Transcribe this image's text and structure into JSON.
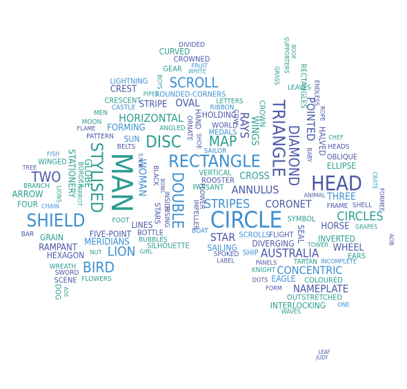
{
  "palette": {
    "navy": "#4a57a6",
    "blue": "#3d8fd0",
    "teal": "#2b9d8f",
    "green": "#2aa67e",
    "sky": "#3ba3c8"
  },
  "words": [
    {
      "text": "DIVIDED",
      "color": "navy"
    },
    {
      "text": "CURVED",
      "color": "teal"
    },
    {
      "text": "CROWNED",
      "color": "navy"
    },
    {
      "text": "GEAR",
      "color": "teal"
    },
    {
      "text": "FRUIT",
      "color": "blue"
    },
    {
      "text": "WHITE",
      "color": "sky"
    },
    {
      "text": "BOYS",
      "color": "teal"
    },
    {
      "text": "LIGHTNING",
      "color": "blue"
    },
    {
      "text": "SCROLL",
      "color": "blue"
    },
    {
      "text": "CREST",
      "color": "navy"
    },
    {
      "text": "PIPES",
      "color": "teal"
    },
    {
      "text": "ROUNDED-CORNERS",
      "color": "blue"
    },
    {
      "text": "CRESCENT",
      "color": "teal"
    },
    {
      "text": "OVAL",
      "color": "navy"
    },
    {
      "text": "LETTERS",
      "color": "teal"
    },
    {
      "text": "CASTLE",
      "color": "blue"
    },
    {
      "text": "STRIPE",
      "color": "navy"
    },
    {
      "text": "RIBBON",
      "color": "blue"
    },
    {
      "text": "MEN",
      "color": "teal"
    },
    {
      "text": "HORIZONTAL",
      "color": "teal"
    },
    {
      "text": "HOLDING",
      "color": "navy"
    },
    {
      "text": "MOON",
      "color": "teal"
    },
    {
      "text": "FLAME",
      "color": "navy"
    },
    {
      "text": "FORMING",
      "color": "blue"
    },
    {
      "text": "ANGLED",
      "color": "teal"
    },
    {
      "text": "PATTERN",
      "color": "navy"
    },
    {
      "text": "SUN",
      "color": "blue"
    },
    {
      "text": "MAP",
      "color": "teal"
    },
    {
      "text": "WORLD",
      "color": "navy"
    },
    {
      "text": "MEDALS",
      "color": "blue"
    },
    {
      "text": "DISC",
      "color": "teal"
    },
    {
      "text": "BELTS",
      "color": "navy"
    },
    {
      "text": "SAILOR",
      "color": "blue"
    },
    {
      "text": "WINGED",
      "color": "teal"
    },
    {
      "text": "FISH",
      "color": "blue"
    },
    {
      "text": "RECTANGLE",
      "color": "blue"
    },
    {
      "text": "TREE",
      "color": "navy"
    },
    {
      "text": "TWO",
      "color": "navy"
    },
    {
      "text": "VERTICAL",
      "color": "teal"
    },
    {
      "text": "CROSS",
      "color": "teal"
    },
    {
      "text": "BRANCH",
      "color": "teal"
    },
    {
      "text": "ROOSTER",
      "color": "navy"
    },
    {
      "text": "ARROW",
      "color": "teal"
    },
    {
      "text": "PASSANT",
      "color": "teal"
    },
    {
      "text": "ANNULUS",
      "color": "navy"
    },
    {
      "text": "FOUR",
      "color": "teal"
    },
    {
      "text": "CHAIN",
      "color": "blue"
    },
    {
      "text": "STRIPES",
      "color": "blue"
    },
    {
      "text": "CORONET",
      "color": "navy"
    },
    {
      "text": "HEAD",
      "color": "navy"
    },
    {
      "text": "SHIELD",
      "color": "blue"
    },
    {
      "text": "FOOT",
      "color": "teal"
    },
    {
      "text": "CIRCLE",
      "color": "blue"
    },
    {
      "text": "LINES",
      "color": "navy"
    },
    {
      "text": "BAR",
      "color": "navy"
    },
    {
      "text": "GRAIN",
      "color": "teal"
    },
    {
      "text": "FIVE-POINT",
      "color": "navy"
    },
    {
      "text": "BOTTLE",
      "color": "navy"
    },
    {
      "text": "BOAT",
      "color": "blue"
    },
    {
      "text": "STAR",
      "color": "navy"
    },
    {
      "text": "MERIDIANS",
      "color": "blue"
    },
    {
      "text": "BUBBLES",
      "color": "teal"
    },
    {
      "text": "SCROLLS",
      "color": "blue"
    },
    {
      "text": "FLIGHT",
      "color": "navy"
    },
    {
      "text": "SYMBOL",
      "color": "teal"
    },
    {
      "text": "HORSE",
      "color": "navy"
    },
    {
      "text": "RAMPANT",
      "color": "navy"
    },
    {
      "text": "SILHOUETTE",
      "color": "teal"
    },
    {
      "text": "SAILING",
      "color": "blue"
    },
    {
      "text": "DIVERGING",
      "color": "navy"
    },
    {
      "text": "HEXAGON",
      "color": "navy"
    },
    {
      "text": "LION",
      "color": "blue"
    },
    {
      "text": "NUT",
      "color": "teal"
    },
    {
      "text": "GIRL",
      "color": "teal"
    },
    {
      "text": "SPOKED",
      "color": "navy"
    },
    {
      "text": "SHIP",
      "color": "blue"
    },
    {
      "text": "AUSTRALIA",
      "color": "navy"
    },
    {
      "text": "LABEL",
      "color": "navy"
    },
    {
      "text": "TOWER",
      "color": "teal"
    },
    {
      "text": "WHEEL",
      "color": "navy"
    },
    {
      "text": "INVERTED",
      "color": "teal"
    },
    {
      "text": "EARS",
      "color": "teal"
    },
    {
      "text": "BIRD",
      "color": "blue"
    },
    {
      "text": "WREATH",
      "color": "teal"
    },
    {
      "text": "SWORD",
      "color": "navy"
    },
    {
      "text": "SCENE",
      "color": "navy"
    },
    {
      "text": "FLOWERS",
      "color": "teal"
    },
    {
      "text": "PANELS",
      "color": "navy"
    },
    {
      "text": "KNIGHT",
      "color": "teal"
    },
    {
      "text": "TARTAN",
      "color": "teal"
    },
    {
      "text": "INCOMPLETE",
      "color": "blue"
    },
    {
      "text": "CONCENTRIC",
      "color": "blue"
    },
    {
      "text": "DOTS",
      "color": "navy"
    },
    {
      "text": "EAGLE",
      "color": "blue"
    },
    {
      "text": "COLOURED",
      "color": "teal"
    },
    {
      "text": "FORM",
      "color": "navy"
    },
    {
      "text": "NAMEPLATE",
      "color": "navy"
    },
    {
      "text": "OUTSTRETCHED",
      "color": "teal"
    },
    {
      "text": "INTERLOCKING",
      "color": "teal"
    },
    {
      "text": "ONE",
      "color": "blue"
    },
    {
      "text": "WAVES",
      "color": "teal"
    },
    {
      "text": "CIRCLES",
      "color": "teal"
    },
    {
      "text": "THREE",
      "color": "blue"
    },
    {
      "text": "ELLIPSE",
      "color": "teal"
    },
    {
      "text": "OBLIQUE",
      "color": "navy"
    },
    {
      "text": "HEADS",
      "color": "navy"
    },
    {
      "text": "CHEF",
      "color": "teal"
    },
    {
      "text": "ANIMAL",
      "color": "navy"
    },
    {
      "text": "FRAME",
      "color": "navy"
    },
    {
      "text": "SHELL",
      "color": "navy"
    },
    {
      "text": "GRAPES",
      "color": "teal"
    },
    {
      "text": "LEAVES",
      "color": "teal"
    },
    {
      "text": "LEAF",
      "color": "navy"
    },
    {
      "text": "JUDY",
      "color": "navy"
    },
    {
      "text": "MAN",
      "color": "teal"
    },
    {
      "text": "STYLISED",
      "color": "teal"
    },
    {
      "text": "STATIONERY",
      "color": "teal"
    },
    {
      "text": "GLOBE",
      "color": "teal"
    },
    {
      "text": "BORDER",
      "color": "teal"
    },
    {
      "text": "LIONS",
      "color": "teal"
    },
    {
      "text": "PARROT",
      "color": "teal"
    },
    {
      "text": "WOMAN",
      "color": "blue"
    },
    {
      "text": "BLACK",
      "color": "navy"
    },
    {
      "text": "S.N.W.",
      "color": "navy"
    },
    {
      "text": "INSIDE",
      "color": "navy"
    },
    {
      "text": "BOWL",
      "color": "navy"
    },
    {
      "text": "DOUBLE",
      "color": "blue"
    },
    {
      "text": "RISING",
      "color": "navy"
    },
    {
      "text": "STARS",
      "color": "navy"
    },
    {
      "text": "IMPELLER",
      "color": "navy"
    },
    {
      "text": "ORNATE",
      "color": "navy"
    },
    {
      "text": "HAND",
      "color": "navy"
    },
    {
      "text": "SHOE",
      "color": "navy"
    },
    {
      "text": "FLOWER",
      "color": "navy"
    },
    {
      "text": "COW",
      "color": "navy"
    },
    {
      "text": "RAYS",
      "color": "navy"
    },
    {
      "text": "WINGS",
      "color": "teal"
    },
    {
      "text": "CROWN",
      "color": "teal"
    },
    {
      "text": "TRIANGLE",
      "color": "navy"
    },
    {
      "text": "DIAMOND",
      "color": "navy"
    },
    {
      "text": "SEAL",
      "color": "navy"
    },
    {
      "text": "GRASS",
      "color": "teal"
    },
    {
      "text": "SUPPORTERS",
      "color": "teal"
    },
    {
      "text": "BOOK",
      "color": "teal"
    },
    {
      "text": "RECTANGLES",
      "color": "teal"
    },
    {
      "text": "POINTED",
      "color": "navy"
    },
    {
      "text": "ENDLESS",
      "color": "navy"
    },
    {
      "text": "BABY",
      "color": "navy"
    },
    {
      "text": "HALVED",
      "color": "navy"
    },
    {
      "text": "ROPE",
      "color": "navy"
    },
    {
      "text": "CRATE",
      "color": "sky"
    },
    {
      "text": "FORMEE",
      "color": "navy"
    },
    {
      "text": "AOB",
      "color": "navy"
    },
    {
      "text": "DOG",
      "color": "teal"
    },
    {
      "text": "ADE",
      "color": "teal"
    }
  ]
}
